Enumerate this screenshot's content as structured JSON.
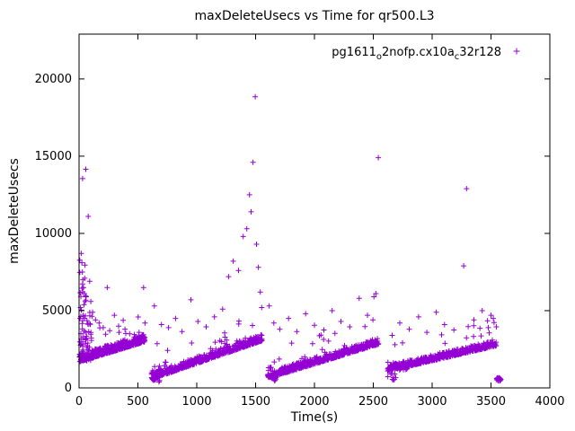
{
  "chart_data": {
    "type": "scatter",
    "title": "maxDeleteUsecs vs Time for qr500.L3",
    "xlabel": "Time(s)",
    "ylabel": "maxDeleteUsecs",
    "xlim": [
      0,
      4000
    ],
    "ylim": [
      0,
      22900
    ],
    "xticks": [
      0,
      500,
      1000,
      1500,
      2000,
      2500,
      3000,
      3500,
      4000
    ],
    "yticks": [
      0,
      5000,
      10000,
      15000,
      20000
    ],
    "grid": false,
    "legend_position": "top-right-inside",
    "series": [
      {
        "name": "pg1611o2nofp.cx10ac32r128",
        "name_parts": [
          {
            "t": "pg1611",
            "sub": false
          },
          {
            "t": "o",
            "sub": true
          },
          {
            "t": "2nofp.cx10a",
            "sub": false
          },
          {
            "t": "c",
            "sub": true
          },
          {
            "t": "32r128",
            "sub": false
          }
        ],
        "marker": "plus",
        "color": "#9400d3",
        "pattern": "sawtooth ramps of dense points with scattered high outliers",
        "ramps": [
          {
            "x0": 3,
            "x1": 560,
            "y0": 1760,
            "y1": 3060,
            "n": 380,
            "band": 520,
            "spike_p": 0.05,
            "spike_max": 1900
          },
          {
            "x0": 615,
            "x1": 1556,
            "y0": 640,
            "y1": 3120,
            "n": 470,
            "band": 430,
            "spike_p": 0.055,
            "spike_max": 1900
          },
          {
            "x0": 1604,
            "x1": 2546,
            "y0": 690,
            "y1": 2900,
            "n": 470,
            "band": 420,
            "spike_p": 0.05,
            "spike_max": 1800
          },
          {
            "x0": 2620,
            "x1": 3546,
            "y0": 1160,
            "y1": 2790,
            "n": 440,
            "band": 380,
            "spike_p": 0.04,
            "spike_max": 1700
          }
        ],
        "bursts": [
          {
            "x0": 4,
            "x1": 110,
            "yMin": 1750,
            "yMax": 4900,
            "n": 58,
            "pow": 1.6
          },
          {
            "x0": 6,
            "x1": 70,
            "yMin": 4900,
            "yMax": 9100,
            "n": 14,
            "pow": 1.4
          },
          {
            "x0": 615,
            "x1": 685,
            "yMin": 380,
            "yMax": 1500,
            "n": 20,
            "pow": 1.4
          },
          {
            "x0": 1604,
            "x1": 1680,
            "yMin": 420,
            "yMax": 1400,
            "n": 18,
            "pow": 1.4
          },
          {
            "x0": 2700,
            "x1": 2790,
            "yMin": 1150,
            "yMax": 1650,
            "n": 26,
            "pow": 1.2
          },
          {
            "x0": 2620,
            "x1": 2700,
            "yMin": 500,
            "yMax": 1200,
            "n": 10,
            "pow": 1.2
          },
          {
            "x0": 3548,
            "x1": 3586,
            "yMin": 430,
            "yMax": 670,
            "n": 26,
            "pow": 1.0
          }
        ],
        "outliers": [
          [
            8,
            4500
          ],
          [
            12,
            5200
          ],
          [
            18,
            8700
          ],
          [
            24,
            8100
          ],
          [
            28,
            7500
          ],
          [
            33,
            7000
          ],
          [
            38,
            6500
          ],
          [
            45,
            6100
          ],
          [
            52,
            5600
          ],
          [
            30,
            13550
          ],
          [
            57,
            14150
          ],
          [
            78,
            11100
          ],
          [
            90,
            6900
          ],
          [
            100,
            5600
          ],
          [
            115,
            4900
          ],
          [
            140,
            4400
          ],
          [
            170,
            4200
          ],
          [
            205,
            3900
          ],
          [
            240,
            6500
          ],
          [
            260,
            3700
          ],
          [
            300,
            4700
          ],
          [
            340,
            3600
          ],
          [
            390,
            3800
          ],
          [
            430,
            3500
          ],
          [
            470,
            3450
          ],
          [
            510,
            3600
          ],
          [
            548,
            6500
          ],
          [
            560,
            4200
          ],
          [
            640,
            5300
          ],
          [
            700,
            4100
          ],
          [
            760,
            3900
          ],
          [
            820,
            4500
          ],
          [
            875,
            3650
          ],
          [
            950,
            5700
          ],
          [
            1010,
            4300
          ],
          [
            1080,
            3950
          ],
          [
            1150,
            4600
          ],
          [
            1220,
            5100
          ],
          [
            1270,
            7200
          ],
          [
            1310,
            8200
          ],
          [
            1355,
            7600
          ],
          [
            1395,
            9800
          ],
          [
            1425,
            10300
          ],
          [
            1448,
            12500
          ],
          [
            1462,
            11400
          ],
          [
            1478,
            14600
          ],
          [
            1497,
            18850
          ],
          [
            1508,
            9300
          ],
          [
            1524,
            7800
          ],
          [
            1540,
            6200
          ],
          [
            1552,
            5200
          ],
          [
            1615,
            5300
          ],
          [
            1655,
            4200
          ],
          [
            1705,
            3800
          ],
          [
            1780,
            4500
          ],
          [
            1850,
            3650
          ],
          [
            1925,
            4800
          ],
          [
            2000,
            4050
          ],
          [
            2080,
            3750
          ],
          [
            2150,
            5000
          ],
          [
            2225,
            4300
          ],
          [
            2300,
            3950
          ],
          [
            2380,
            5800
          ],
          [
            2450,
            4700
          ],
          [
            2505,
            5900
          ],
          [
            2522,
            6100
          ],
          [
            2543,
            14900
          ],
          [
            2660,
            3400
          ],
          [
            2725,
            4200
          ],
          [
            2805,
            3800
          ],
          [
            2885,
            4600
          ],
          [
            2955,
            3600
          ],
          [
            3035,
            4900
          ],
          [
            3105,
            4100
          ],
          [
            3185,
            3750
          ],
          [
            3268,
            7900
          ],
          [
            3292,
            12900
          ],
          [
            3355,
            4400
          ],
          [
            3425,
            5000
          ],
          [
            3470,
            4350
          ],
          [
            3500,
            4700
          ],
          [
            3520,
            4500
          ],
          [
            3545,
            3950
          ]
        ]
      }
    ]
  }
}
